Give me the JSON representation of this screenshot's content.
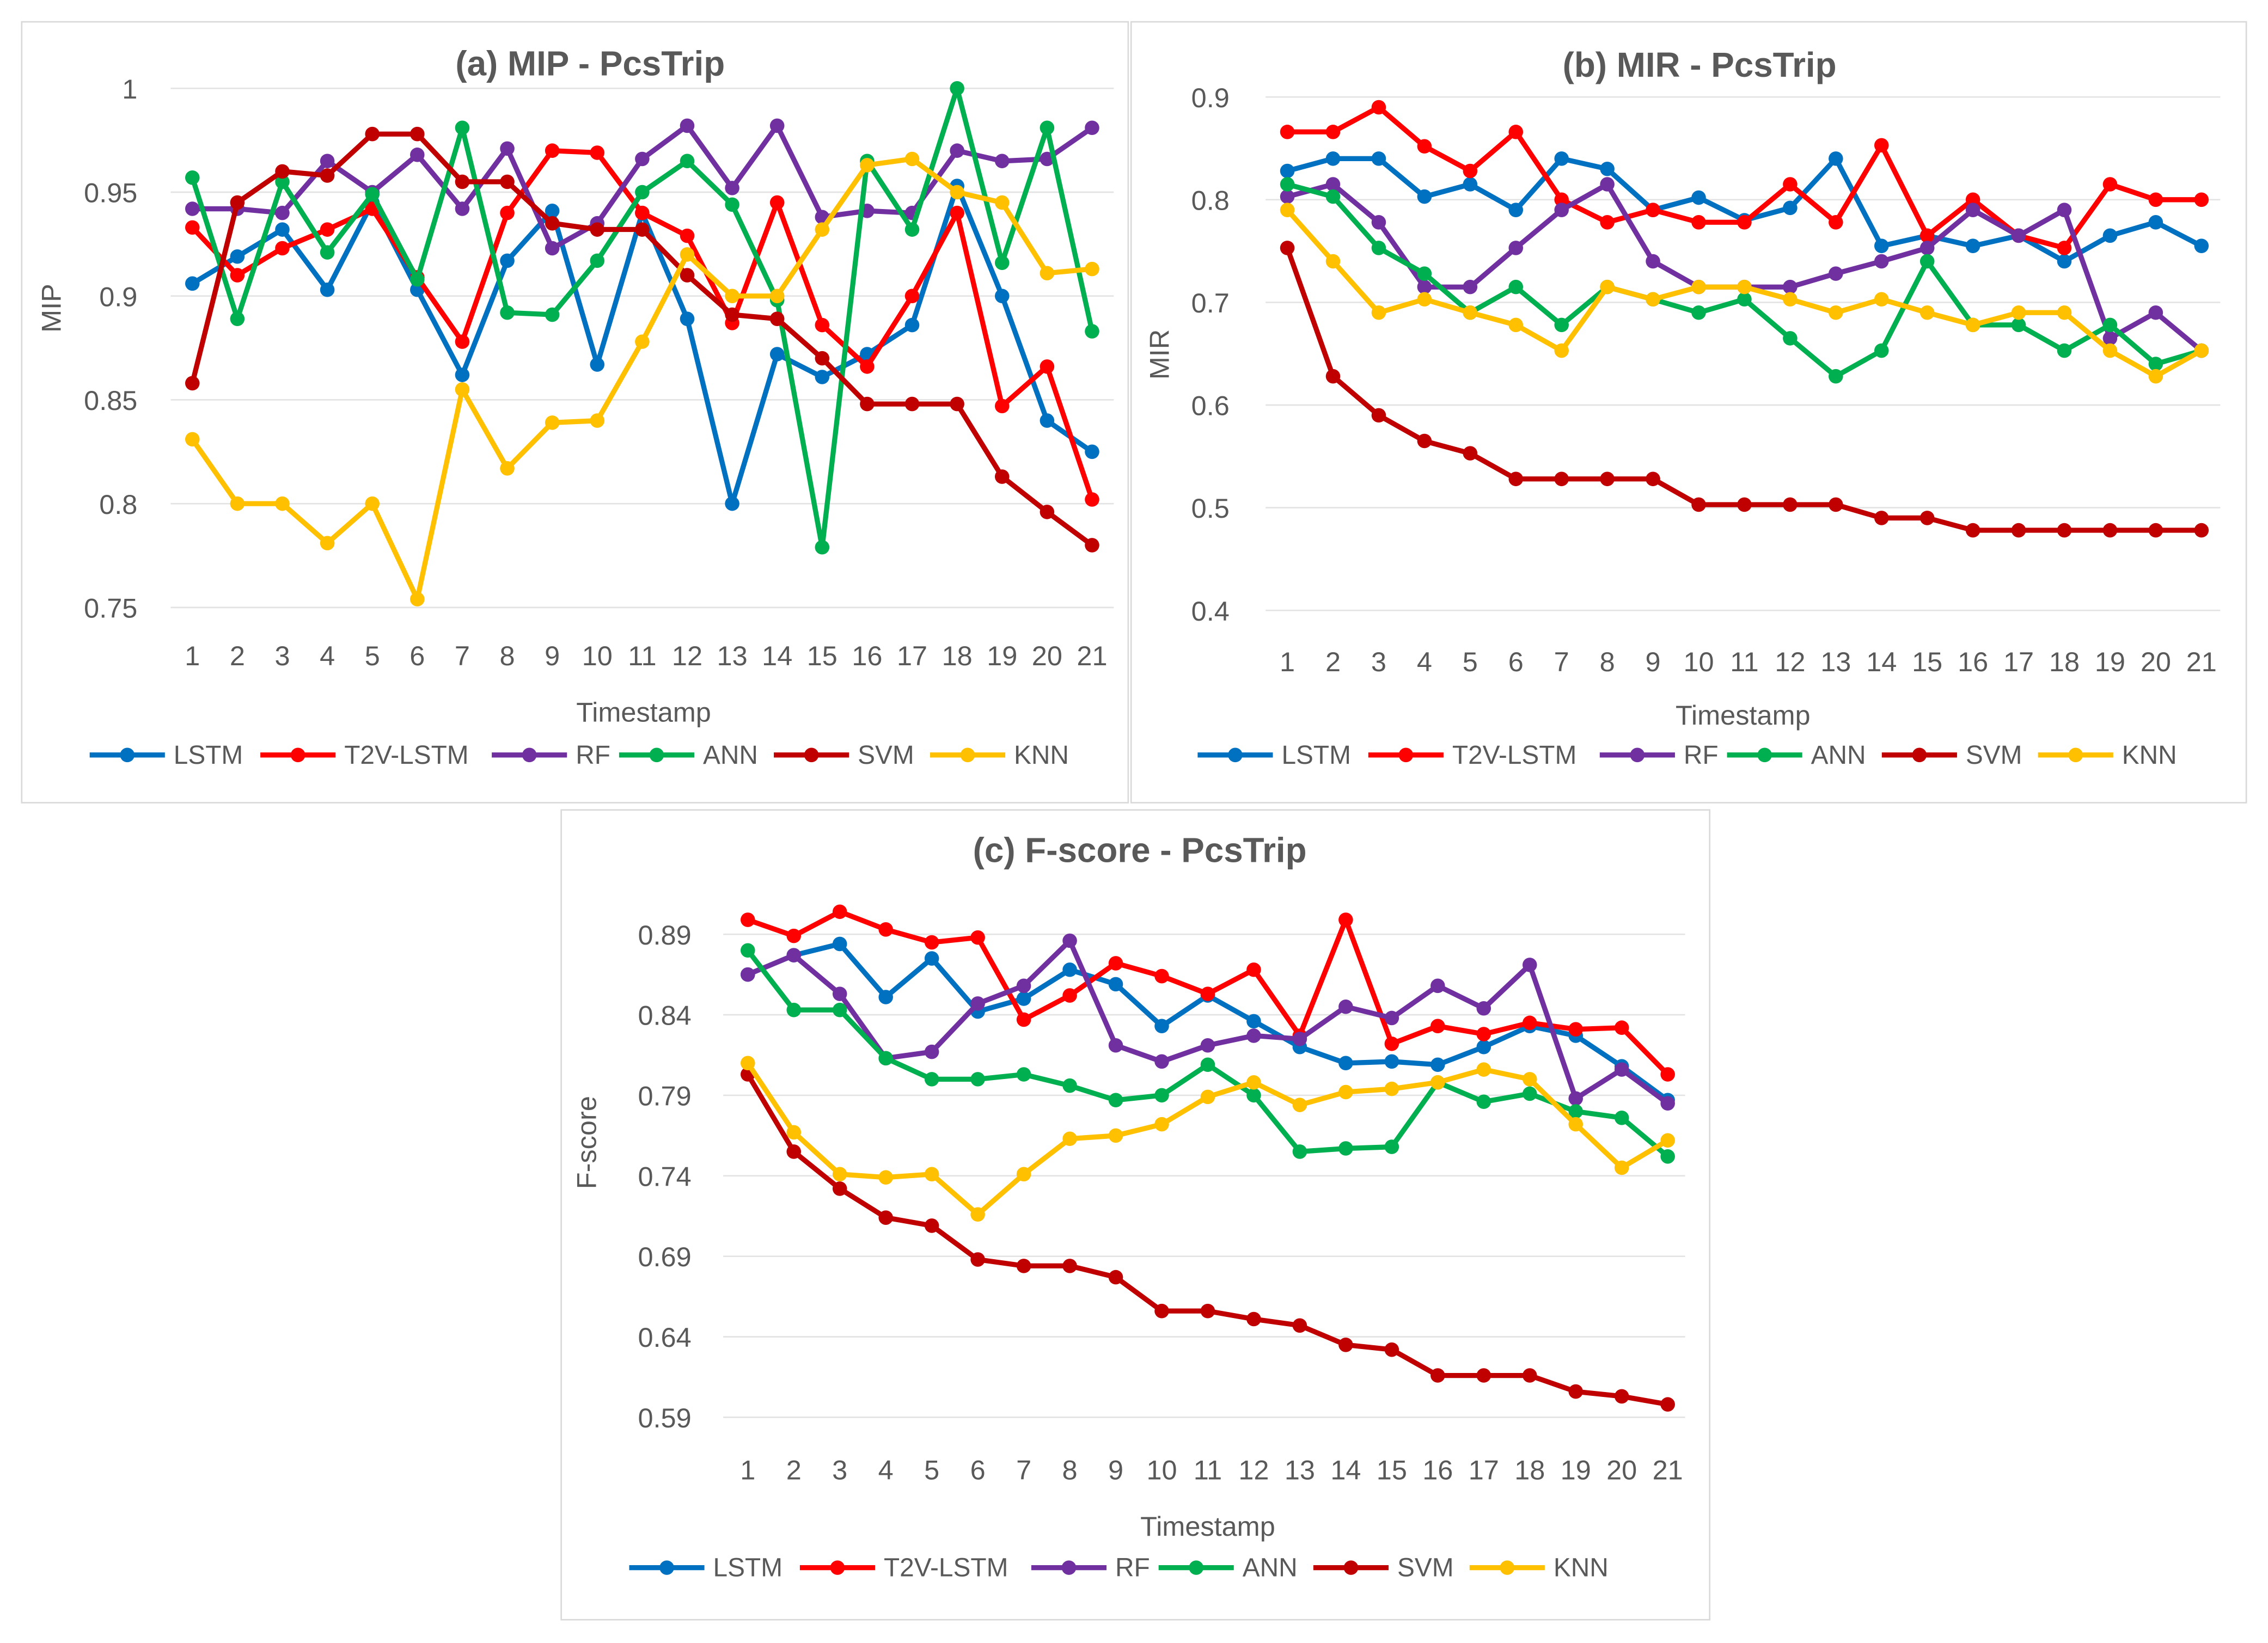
{
  "colors": {
    "LSTM": "#0070c0",
    "T2V-LSTM": "#ff0000",
    "RF": "#7030a0",
    "ANN": "#00b050",
    "SVM": "#c00000",
    "KNN": "#ffc000"
  },
  "chart_data": [
    {
      "type": "line",
      "title": "(a) MIP - PcsTrip",
      "xlabel": "Timestamp",
      "ylabel": "MIP",
      "ylim": [
        0.75,
        1
      ],
      "yticks": [
        "0.75",
        "0.8",
        "0.85",
        "0.9",
        "0.95",
        "1"
      ],
      "grid": true,
      "legend": "bottom",
      "x": [
        1,
        2,
        3,
        4,
        5,
        6,
        7,
        8,
        9,
        10,
        11,
        12,
        13,
        14,
        15,
        16,
        17,
        18,
        19,
        20,
        21
      ],
      "series": [
        {
          "name": "LSTM",
          "values": [
            0.906,
            0.919,
            0.932,
            0.903,
            0.945,
            0.903,
            0.862,
            0.917,
            0.941,
            0.867,
            0.94,
            0.889,
            0.8,
            0.872,
            0.861,
            0.872,
            0.886,
            0.953,
            0.9,
            0.84,
            0.825
          ]
        },
        {
          "name": "T2V-LSTM",
          "values": [
            0.933,
            0.91,
            0.923,
            0.932,
            0.942,
            0.909,
            0.878,
            0.94,
            0.97,
            0.969,
            0.94,
            0.929,
            0.887,
            0.945,
            0.886,
            0.866,
            0.9,
            0.94,
            0.847,
            0.866,
            0.802
          ]
        },
        {
          "name": "RF",
          "values": [
            0.942,
            0.942,
            0.94,
            0.965,
            0.95,
            0.968,
            0.942,
            0.971,
            0.923,
            0.935,
            0.966,
            0.982,
            0.952,
            0.982,
            0.938,
            0.941,
            0.94,
            0.97,
            0.965,
            0.966,
            0.981
          ]
        },
        {
          "name": "ANN",
          "values": [
            0.957,
            0.889,
            0.955,
            0.921,
            0.949,
            0.908,
            0.981,
            0.892,
            0.891,
            0.917,
            0.95,
            0.965,
            0.944,
            0.898,
            0.779,
            0.965,
            0.932,
            1.0,
            0.916,
            0.981,
            0.883
          ]
        },
        {
          "name": "SVM",
          "values": [
            0.858,
            0.945,
            0.96,
            0.958,
            0.978,
            0.978,
            0.955,
            0.955,
            0.935,
            0.932,
            0.932,
            0.91,
            0.891,
            0.889,
            0.87,
            0.848,
            0.848,
            0.848,
            0.813,
            0.796,
            0.78
          ]
        },
        {
          "name": "KNN",
          "values": [
            0.831,
            0.8,
            0.8,
            0.781,
            0.8,
            0.754,
            0.855,
            0.817,
            0.839,
            0.84,
            0.878,
            0.92,
            0.9,
            0.9,
            0.932,
            0.963,
            0.966,
            0.95,
            0.945,
            0.911,
            0.913
          ]
        }
      ]
    },
    {
      "type": "line",
      "title": "(b) MIR - PcsTrip",
      "xlabel": "Timestamp",
      "ylabel": "MIR",
      "ylim": [
        0.4,
        0.9
      ],
      "yticks": [
        "0.4",
        "0.5",
        "0.6",
        "0.7",
        "0.8",
        "0.9"
      ],
      "grid": true,
      "legend": "bottom",
      "x": [
        1,
        2,
        3,
        4,
        5,
        6,
        7,
        8,
        9,
        10,
        11,
        12,
        13,
        14,
        15,
        16,
        17,
        18,
        19,
        20,
        21
      ],
      "series": [
        {
          "name": "LSTM",
          "values": [
            0.828,
            0.84,
            0.84,
            0.803,
            0.815,
            0.79,
            0.84,
            0.83,
            0.79,
            0.802,
            0.78,
            0.792,
            0.84,
            0.755,
            0.765,
            0.755,
            0.765,
            0.74,
            0.765,
            0.778,
            0.755
          ]
        },
        {
          "name": "T2V-LSTM",
          "values": [
            0.866,
            0.866,
            0.89,
            0.852,
            0.828,
            0.866,
            0.8,
            0.778,
            0.79,
            0.778,
            0.778,
            0.815,
            0.778,
            0.853,
            0.765,
            0.8,
            0.765,
            0.753,
            0.815,
            0.8,
            0.8
          ]
        },
        {
          "name": "RF",
          "values": [
            0.803,
            0.815,
            0.778,
            0.715,
            0.715,
            0.753,
            0.79,
            0.815,
            0.74,
            0.715,
            0.715,
            0.715,
            0.728,
            0.74,
            0.753,
            0.79,
            0.765,
            0.79,
            0.665,
            0.69,
            0.653
          ]
        },
        {
          "name": "ANN",
          "values": [
            0.815,
            0.803,
            0.753,
            0.728,
            0.69,
            0.715,
            0.678,
            0.715,
            0.703,
            0.69,
            0.703,
            0.665,
            0.628,
            0.653,
            0.74,
            0.678,
            0.678,
            0.653,
            0.678,
            0.64,
            0.653
          ]
        },
        {
          "name": "SVM",
          "values": [
            0.753,
            0.628,
            0.59,
            0.565,
            0.553,
            0.528,
            0.528,
            0.528,
            0.528,
            0.503,
            0.503,
            0.503,
            0.503,
            0.49,
            0.49,
            0.478,
            0.478,
            0.478,
            0.478,
            0.478,
            0.478
          ]
        },
        {
          "name": "KNN",
          "values": [
            0.79,
            0.74,
            0.69,
            0.703,
            0.69,
            0.678,
            0.653,
            0.715,
            0.703,
            0.715,
            0.715,
            0.703,
            0.69,
            0.703,
            0.69,
            0.678,
            0.69,
            0.69,
            0.653,
            0.628,
            0.653
          ]
        }
      ]
    },
    {
      "type": "line",
      "title": "(c) F-score - PcsTrip",
      "xlabel": "Timestamp",
      "ylabel": "F-score",
      "ylim": [
        0.59,
        0.89
      ],
      "yticks": [
        "0.59",
        "0.64",
        "0.69",
        "0.74",
        "0.79",
        "0.84",
        "0.89"
      ],
      "grid": true,
      "legend": "bottom",
      "x": [
        1,
        2,
        3,
        4,
        5,
        6,
        7,
        8,
        9,
        10,
        11,
        12,
        13,
        14,
        15,
        16,
        17,
        18,
        19,
        20,
        21
      ],
      "series": [
        {
          "name": "LSTM",
          "values": [
            0.865,
            0.877,
            0.884,
            0.851,
            0.875,
            0.842,
            0.85,
            0.868,
            0.859,
            0.833,
            0.852,
            0.836,
            0.82,
            0.81,
            0.811,
            0.809,
            0.82,
            0.833,
            0.827,
            0.808,
            0.787
          ]
        },
        {
          "name": "T2V-LSTM",
          "values": [
            0.899,
            0.889,
            0.904,
            0.893,
            0.885,
            0.888,
            0.837,
            0.852,
            0.872,
            0.864,
            0.853,
            0.868,
            0.827,
            0.899,
            0.822,
            0.833,
            0.828,
            0.835,
            0.831,
            0.832,
            0.803
          ]
        },
        {
          "name": "RF",
          "values": [
            0.865,
            0.877,
            0.853,
            0.813,
            0.817,
            0.847,
            0.858,
            0.886,
            0.821,
            0.811,
            0.821,
            0.827,
            0.825,
            0.845,
            0.838,
            0.858,
            0.844,
            0.871,
            0.788,
            0.806,
            0.785
          ]
        },
        {
          "name": "ANN",
          "values": [
            0.88,
            0.843,
            0.843,
            0.813,
            0.8,
            0.8,
            0.803,
            0.796,
            0.787,
            0.79,
            0.809,
            0.79,
            0.755,
            0.757,
            0.758,
            0.798,
            0.786,
            0.791,
            0.78,
            0.776,
            0.752
          ]
        },
        {
          "name": "SVM",
          "values": [
            0.803,
            0.755,
            0.732,
            0.714,
            0.709,
            0.688,
            0.684,
            0.684,
            0.677,
            0.656,
            0.656,
            0.651,
            0.647,
            0.635,
            0.632,
            0.616,
            0.616,
            0.616,
            0.606,
            0.603,
            0.598
          ]
        },
        {
          "name": "KNN",
          "values": [
            0.81,
            0.767,
            0.741,
            0.739,
            0.741,
            0.716,
            0.741,
            0.763,
            0.765,
            0.772,
            0.789,
            0.798,
            0.784,
            0.792,
            0.794,
            0.798,
            0.806,
            0.8,
            0.772,
            0.745,
            0.762
          ]
        }
      ]
    }
  ]
}
